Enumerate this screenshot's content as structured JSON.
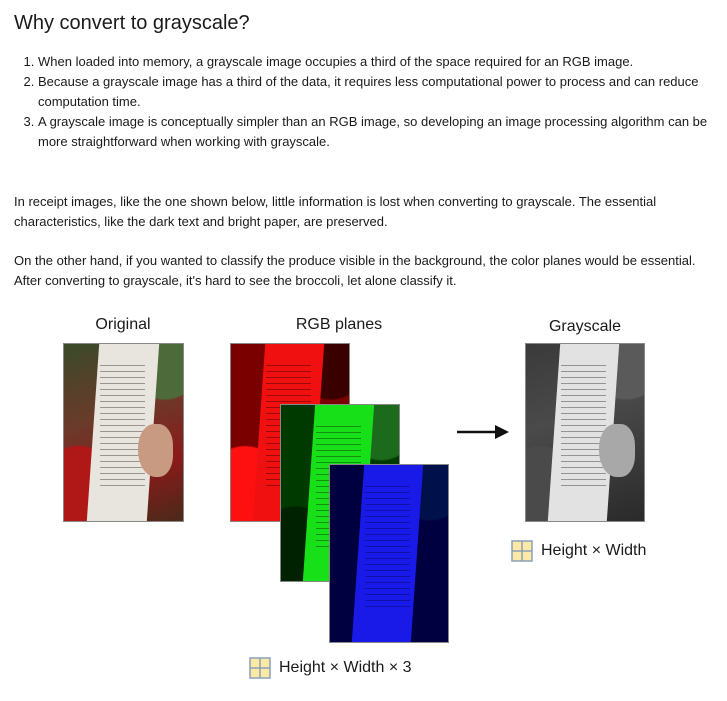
{
  "title": "Why convert to grayscale?",
  "points": [
    "When loaded into memory, a grayscale image occupies a third of the space required for an RGB image.",
    "Because a grayscale image has a third of the data, it requires less computational power to process and can reduce computation time.",
    "A grayscale image is conceptually simpler than an RGB image, so developing an image processing algorithm can be more straightforward when working with grayscale."
  ],
  "para1": "In receipt images, like the one shown below, little information is lost when converting to grayscale. The essential characteristics, like the dark text and bright paper, are preserved.",
  "para2": "On the other hand, if you wanted to classify the produce visible in the background, the color planes would be essential. After converting to grayscale, it's hard to see the broccoli, let alone classify it.",
  "figure": {
    "label_original": "Original",
    "label_rgb": "RGB planes",
    "label_gray": "Grayscale",
    "gray_dims": "Height × Width",
    "rgb_dims": "Height × Width × 3",
    "icons": [
      "grid-icon",
      "arrow-right-icon"
    ],
    "colors": {
      "red": "#e00000",
      "green": "#00d000",
      "blue": "#1010e0",
      "grid_fill": "#fde9a6",
      "grid_border": "#8aa0b8"
    }
  }
}
